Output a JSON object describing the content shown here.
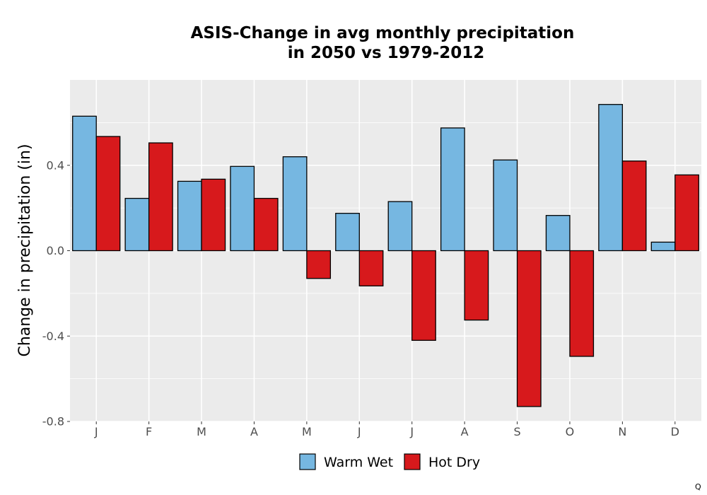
{
  "chart_data": {
    "type": "bar",
    "title_lines": [
      "ASIS-Change in avg monthly precipitation",
      "in 2050 vs 1979-2012"
    ],
    "xlabel": "",
    "ylabel": "Change in precipitation (in)",
    "categories": [
      "J",
      "F",
      "M",
      "A",
      "M",
      "J",
      "J",
      "A",
      "S",
      "O",
      "N",
      "D"
    ],
    "series": [
      {
        "name": "Warm Wet",
        "color": "#76b7e1",
        "values": [
          0.63,
          0.245,
          0.325,
          0.395,
          0.44,
          0.175,
          0.23,
          0.575,
          0.425,
          0.165,
          0.685,
          0.04
        ]
      },
      {
        "name": "Hot Dry",
        "color": "#d7191c",
        "values": [
          0.535,
          0.505,
          0.335,
          0.245,
          -0.13,
          -0.165,
          -0.42,
          -0.325,
          -0.73,
          -0.495,
          0.42,
          0.355
        ]
      }
    ],
    "ylim": [
      -0.8,
      0.8
    ],
    "yticks": [
      -0.8,
      -0.4,
      0.0,
      0.4
    ],
    "ytick_labels": [
      "-0.8",
      "-0.4",
      "0.0",
      "0.4"
    ],
    "grid": true,
    "legend_position": "bottom",
    "panel_background": "#ebebeb",
    "corner_mark": "Q"
  }
}
